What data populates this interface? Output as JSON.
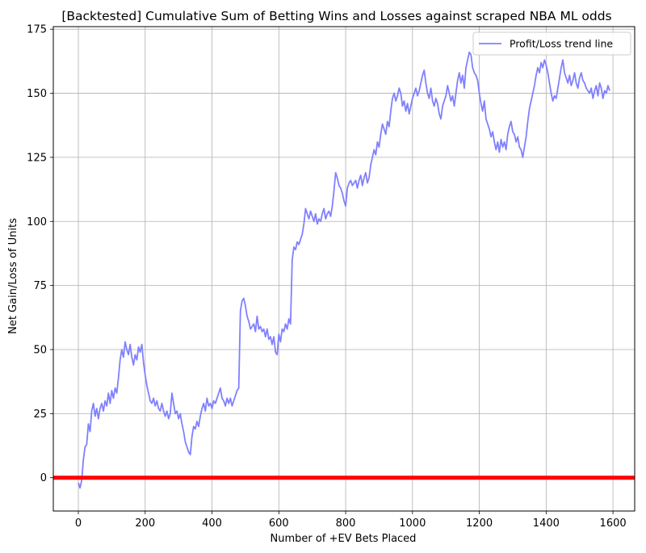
{
  "chart_data": {
    "type": "line",
    "title": "[Backtested] Cumulative Sum of Betting Wins and Losses against scraped NBA ML odds",
    "xlabel": "Number of +EV Bets Placed",
    "ylabel": "Net Gain/Loss of Units",
    "xlim": [
      -75,
      1665
    ],
    "ylim": [
      -13,
      176
    ],
    "x_ticks": [
      0,
      200,
      400,
      600,
      800,
      1000,
      1200,
      1400,
      1600
    ],
    "y_ticks": [
      0,
      25,
      50,
      75,
      100,
      125,
      150,
      175
    ],
    "x_tick_labels": [
      "0",
      "200",
      "400",
      "600",
      "800",
      "1000",
      "1200",
      "1400",
      "1600"
    ],
    "y_tick_labels": [
      "0",
      "25",
      "50",
      "75",
      "100",
      "125",
      "150",
      "175"
    ],
    "grid": true,
    "legend_position": "top-right",
    "series": [
      {
        "name": "Profit/Loss trend line",
        "color": "#8080ff",
        "points": [
          [
            0,
            -2
          ],
          [
            5,
            -4
          ],
          [
            10,
            -1
          ],
          [
            15,
            7
          ],
          [
            20,
            12
          ],
          [
            25,
            13
          ],
          [
            30,
            21
          ],
          [
            35,
            18
          ],
          [
            40,
            26
          ],
          [
            45,
            29
          ],
          [
            50,
            24
          ],
          [
            55,
            27
          ],
          [
            60,
            23
          ],
          [
            65,
            27
          ],
          [
            70,
            29
          ],
          [
            75,
            26
          ],
          [
            80,
            30
          ],
          [
            85,
            28
          ],
          [
            90,
            33
          ],
          [
            95,
            29
          ],
          [
            100,
            34
          ],
          [
            105,
            31
          ],
          [
            110,
            35
          ],
          [
            115,
            33
          ],
          [
            120,
            39
          ],
          [
            125,
            46
          ],
          [
            130,
            50
          ],
          [
            135,
            47
          ],
          [
            140,
            53
          ],
          [
            145,
            50
          ],
          [
            150,
            48
          ],
          [
            155,
            52
          ],
          [
            160,
            47
          ],
          [
            165,
            44
          ],
          [
            170,
            48
          ],
          [
            175,
            46
          ],
          [
            180,
            51
          ],
          [
            185,
            49
          ],
          [
            190,
            52
          ],
          [
            195,
            45
          ],
          [
            200,
            40
          ],
          [
            205,
            36
          ],
          [
            210,
            33
          ],
          [
            215,
            30
          ],
          [
            220,
            29
          ],
          [
            225,
            31
          ],
          [
            230,
            28
          ],
          [
            235,
            30
          ],
          [
            240,
            27
          ],
          [
            245,
            26
          ],
          [
            250,
            29
          ],
          [
            255,
            26
          ],
          [
            260,
            24
          ],
          [
            265,
            26
          ],
          [
            270,
            23
          ],
          [
            275,
            25
          ],
          [
            280,
            33
          ],
          [
            285,
            29
          ],
          [
            290,
            25
          ],
          [
            295,
            26
          ],
          [
            300,
            23
          ],
          [
            305,
            25
          ],
          [
            310,
            21
          ],
          [
            315,
            18
          ],
          [
            320,
            14
          ],
          [
            325,
            12
          ],
          [
            330,
            10
          ],
          [
            335,
            9
          ],
          [
            340,
            16
          ],
          [
            345,
            20
          ],
          [
            350,
            19
          ],
          [
            355,
            22
          ],
          [
            360,
            20
          ],
          [
            365,
            24
          ],
          [
            370,
            27
          ],
          [
            375,
            29
          ],
          [
            380,
            26
          ],
          [
            385,
            31
          ],
          [
            390,
            28
          ],
          [
            395,
            29
          ],
          [
            400,
            27
          ],
          [
            405,
            30
          ],
          [
            410,
            29
          ],
          [
            415,
            31
          ],
          [
            420,
            33
          ],
          [
            425,
            35
          ],
          [
            430,
            31
          ],
          [
            435,
            30
          ],
          [
            440,
            28
          ],
          [
            445,
            31
          ],
          [
            450,
            29
          ],
          [
            455,
            31
          ],
          [
            460,
            28
          ],
          [
            465,
            30
          ],
          [
            470,
            32
          ],
          [
            475,
            34
          ],
          [
            480,
            35
          ],
          [
            485,
            65
          ],
          [
            490,
            69
          ],
          [
            495,
            70
          ],
          [
            500,
            67
          ],
          [
            505,
            63
          ],
          [
            510,
            61
          ],
          [
            515,
            58
          ],
          [
            520,
            59
          ],
          [
            525,
            60
          ],
          [
            530,
            57
          ],
          [
            535,
            63
          ],
          [
            540,
            58
          ],
          [
            545,
            59
          ],
          [
            550,
            57
          ],
          [
            555,
            58
          ],
          [
            560,
            55
          ],
          [
            565,
            58
          ],
          [
            570,
            54
          ],
          [
            575,
            55
          ],
          [
            580,
            52
          ],
          [
            585,
            55
          ],
          [
            590,
            49
          ],
          [
            595,
            48
          ],
          [
            600,
            56
          ],
          [
            605,
            53
          ],
          [
            610,
            58
          ],
          [
            615,
            57
          ],
          [
            620,
            60
          ],
          [
            625,
            58
          ],
          [
            630,
            62
          ],
          [
            635,
            60
          ],
          [
            640,
            85
          ],
          [
            645,
            90
          ],
          [
            650,
            89
          ],
          [
            655,
            92
          ],
          [
            660,
            91
          ],
          [
            665,
            93
          ],
          [
            670,
            95
          ],
          [
            675,
            99
          ],
          [
            680,
            105
          ],
          [
            685,
            103
          ],
          [
            690,
            101
          ],
          [
            695,
            104
          ],
          [
            700,
            102
          ],
          [
            705,
            100
          ],
          [
            710,
            103
          ],
          [
            715,
            99
          ],
          [
            720,
            101
          ],
          [
            725,
            100
          ],
          [
            730,
            103
          ],
          [
            735,
            105
          ],
          [
            740,
            101
          ],
          [
            745,
            103
          ],
          [
            750,
            104
          ],
          [
            755,
            102
          ],
          [
            760,
            106
          ],
          [
            765,
            112
          ],
          [
            770,
            119
          ],
          [
            775,
            117
          ],
          [
            780,
            114
          ],
          [
            785,
            113
          ],
          [
            790,
            111
          ],
          [
            795,
            108
          ],
          [
            800,
            106
          ],
          [
            805,
            113
          ],
          [
            810,
            115
          ],
          [
            815,
            116
          ],
          [
            820,
            114
          ],
          [
            825,
            115
          ],
          [
            830,
            116
          ],
          [
            835,
            113
          ],
          [
            840,
            116
          ],
          [
            845,
            118
          ],
          [
            850,
            114
          ],
          [
            855,
            117
          ],
          [
            860,
            119
          ],
          [
            865,
            115
          ],
          [
            870,
            117
          ],
          [
            875,
            122
          ],
          [
            880,
            125
          ],
          [
            885,
            128
          ],
          [
            890,
            126
          ],
          [
            895,
            131
          ],
          [
            900,
            129
          ],
          [
            905,
            134
          ],
          [
            910,
            138
          ],
          [
            915,
            136
          ],
          [
            920,
            134
          ],
          [
            925,
            139
          ],
          [
            930,
            137
          ],
          [
            935,
            143
          ],
          [
            940,
            148
          ],
          [
            945,
            150
          ],
          [
            950,
            147
          ],
          [
            955,
            149
          ],
          [
            960,
            152
          ],
          [
            965,
            150
          ],
          [
            970,
            145
          ],
          [
            975,
            147
          ],
          [
            980,
            143
          ],
          [
            985,
            146
          ],
          [
            990,
            142
          ],
          [
            995,
            145
          ],
          [
            1000,
            148
          ],
          [
            1005,
            150
          ],
          [
            1010,
            152
          ],
          [
            1015,
            149
          ],
          [
            1020,
            151
          ],
          [
            1025,
            154
          ],
          [
            1030,
            157
          ],
          [
            1035,
            159
          ],
          [
            1040,
            154
          ],
          [
            1045,
            150
          ],
          [
            1050,
            148
          ],
          [
            1055,
            152
          ],
          [
            1060,
            147
          ],
          [
            1065,
            145
          ],
          [
            1070,
            148
          ],
          [
            1075,
            146
          ],
          [
            1080,
            142
          ],
          [
            1085,
            140
          ],
          [
            1090,
            145
          ],
          [
            1095,
            147
          ],
          [
            1100,
            149
          ],
          [
            1105,
            153
          ],
          [
            1110,
            150
          ],
          [
            1115,
            147
          ],
          [
            1120,
            149
          ],
          [
            1125,
            145
          ],
          [
            1130,
            150
          ],
          [
            1135,
            155
          ],
          [
            1140,
            158
          ],
          [
            1145,
            154
          ],
          [
            1150,
            157
          ],
          [
            1155,
            152
          ],
          [
            1160,
            160
          ],
          [
            1165,
            163
          ],
          [
            1170,
            166
          ],
          [
            1175,
            165
          ],
          [
            1180,
            160
          ],
          [
            1185,
            158
          ],
          [
            1190,
            157
          ],
          [
            1195,
            155
          ],
          [
            1200,
            150
          ],
          [
            1205,
            146
          ],
          [
            1210,
            143
          ],
          [
            1215,
            147
          ],
          [
            1220,
            140
          ],
          [
            1225,
            138
          ],
          [
            1230,
            136
          ],
          [
            1235,
            133
          ],
          [
            1240,
            135
          ],
          [
            1245,
            131
          ],
          [
            1250,
            128
          ],
          [
            1255,
            131
          ],
          [
            1260,
            127
          ],
          [
            1265,
            132
          ],
          [
            1270,
            129
          ],
          [
            1275,
            131
          ],
          [
            1280,
            128
          ],
          [
            1285,
            134
          ],
          [
            1290,
            137
          ],
          [
            1295,
            139
          ],
          [
            1300,
            135
          ],
          [
            1305,
            134
          ],
          [
            1310,
            131
          ],
          [
            1315,
            133
          ],
          [
            1320,
            129
          ],
          [
            1325,
            128
          ],
          [
            1330,
            125
          ],
          [
            1335,
            129
          ],
          [
            1340,
            133
          ],
          [
            1345,
            139
          ],
          [
            1350,
            144
          ],
          [
            1355,
            147
          ],
          [
            1360,
            150
          ],
          [
            1365,
            153
          ],
          [
            1370,
            157
          ],
          [
            1375,
            160
          ],
          [
            1380,
            158
          ],
          [
            1385,
            162
          ],
          [
            1390,
            160
          ],
          [
            1395,
            163
          ],
          [
            1400,
            161
          ],
          [
            1405,
            158
          ],
          [
            1410,
            154
          ],
          [
            1415,
            150
          ],
          [
            1420,
            147
          ],
          [
            1425,
            149
          ],
          [
            1430,
            148
          ],
          [
            1435,
            152
          ],
          [
            1440,
            156
          ],
          [
            1445,
            160
          ],
          [
            1450,
            163
          ],
          [
            1455,
            158
          ],
          [
            1460,
            156
          ],
          [
            1465,
            154
          ],
          [
            1470,
            157
          ],
          [
            1475,
            153
          ],
          [
            1480,
            155
          ],
          [
            1485,
            158
          ],
          [
            1490,
            154
          ],
          [
            1495,
            152
          ],
          [
            1500,
            156
          ],
          [
            1505,
            158
          ],
          [
            1510,
            155
          ],
          [
            1515,
            154
          ],
          [
            1520,
            152
          ],
          [
            1525,
            151
          ],
          [
            1530,
            150
          ],
          [
            1535,
            152
          ],
          [
            1540,
            148
          ],
          [
            1545,
            151
          ],
          [
            1550,
            153
          ],
          [
            1555,
            149
          ],
          [
            1560,
            154
          ],
          [
            1565,
            152
          ],
          [
            1570,
            148
          ],
          [
            1575,
            151
          ],
          [
            1580,
            150
          ],
          [
            1585,
            153
          ],
          [
            1590,
            151
          ]
        ]
      },
      {
        "name": "",
        "color": "#ff0000",
        "points": [
          [
            -75,
            0
          ],
          [
            1665,
            0
          ]
        ]
      }
    ]
  }
}
